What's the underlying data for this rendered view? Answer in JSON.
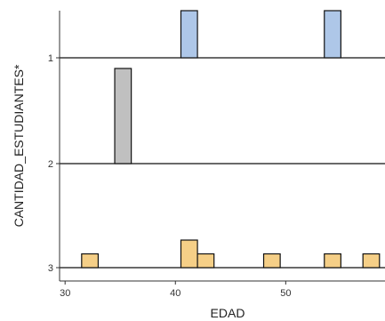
{
  "chart_data": {
    "type": "histogram_ridgeline",
    "title": "",
    "xlabel": "EDAD",
    "ylabel": "CANTIDAD_ESTUDIANTES*",
    "xlim": [
      29.5,
      59
    ],
    "x_ticks": [
      30,
      40,
      50
    ],
    "bin_width": 1.5,
    "rows": [
      {
        "label": "1",
        "color": "#aec7e8",
        "max": 1,
        "bins": [
          {
            "start": 40.5,
            "end": 42,
            "value": 1
          },
          {
            "start": 53.5,
            "end": 55,
            "value": 1
          }
        ]
      },
      {
        "label": "2",
        "color": "#c0c0c0",
        "max": 1,
        "bins": [
          {
            "start": 34.5,
            "end": 36,
            "value": 1
          }
        ]
      },
      {
        "label": "3",
        "color": "#f5cf87",
        "max": 2,
        "bins": [
          {
            "start": 31.5,
            "end": 33,
            "value": 1
          },
          {
            "start": 40.5,
            "end": 42,
            "value": 2
          },
          {
            "start": 42,
            "end": 43.5,
            "value": 1
          },
          {
            "start": 48,
            "end": 49.5,
            "value": 1
          },
          {
            "start": 53.5,
            "end": 55,
            "value": 1
          },
          {
            "start": 57,
            "end": 58.5,
            "value": 1
          }
        ]
      }
    ],
    "grid": false,
    "legend": "none"
  }
}
